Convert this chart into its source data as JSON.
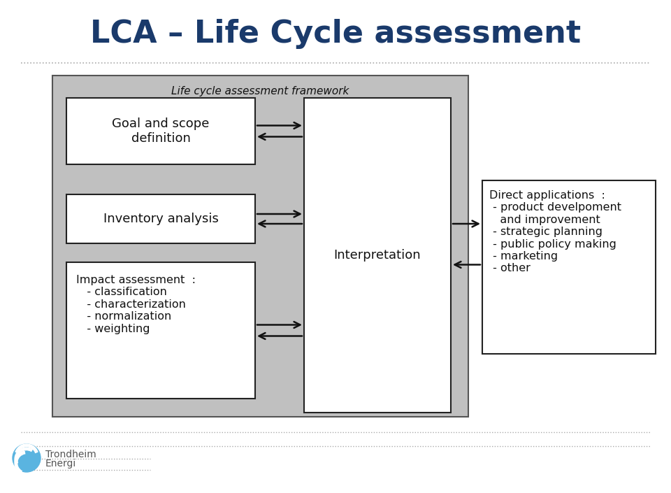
{
  "title": "LCA – Life Cycle assessment",
  "title_color": "#1a3a6b",
  "title_fontsize": 32,
  "title_fontweight": "bold",
  "bg_color": "#ffffff",
  "framework_label": "Life cycle assessment framework",
  "framework_bg": "#c0c0c0",
  "framework_border": "#555555",
  "box_bg": "#ffffff",
  "box_border": "#222222",
  "interp_bg": "#ffffff",
  "interp_border": "#222222",
  "direct_bg": "#ffffff",
  "direct_border": "#222222",
  "box1_text": "Goal and scope\ndefinition",
  "box2_text": "Inventory analysis",
  "box3_text": "Impact assessment  :\n   - classification\n   - characterization\n   - normalization\n   - weighting",
  "interp_text": "Interpretation",
  "direct_text": "Direct applications  :\n - product develpoment\n   and improvement\n - strategic planning\n - public policy making\n - marketing\n - other",
  "text_fontsize": 13,
  "small_fontsize": 11.5,
  "dotted_line_color": "#aaaaaa",
  "arrow_color": "#111111",
  "logo_color": "#3399cc"
}
